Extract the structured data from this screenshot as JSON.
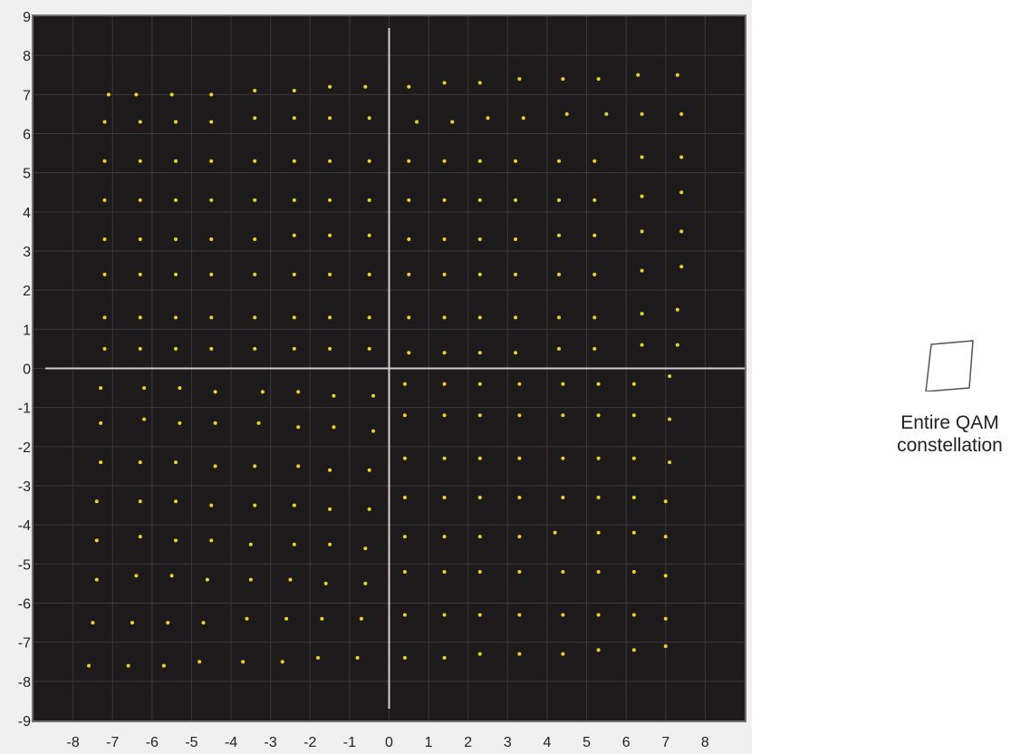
{
  "colors": {
    "plot_background": "#1c1a1a",
    "grid": "#3a3838",
    "axis_lines": "#cfcfcf",
    "points": "#f2d21a",
    "panel_frame": "#6e6e6e"
  },
  "legend": {
    "label": "Entire QAM\nconstellation",
    "icon": "parallelogram-outline-icon"
  },
  "chart_data": {
    "type": "scatter",
    "title": "",
    "xlabel": "",
    "ylabel": "",
    "xlim": [
      -9,
      9
    ],
    "ylim": [
      -9,
      9
    ],
    "x_ticks": [
      -8,
      -7,
      -6,
      -5,
      -4,
      -3,
      -2,
      -1,
      0,
      1,
      2,
      3,
      4,
      5,
      6,
      7,
      8
    ],
    "y_ticks": [
      9,
      8,
      7,
      6,
      5,
      4,
      3,
      2,
      1,
      0,
      -1,
      -2,
      -3,
      -4,
      -5,
      -6,
      -7,
      -8,
      -9
    ],
    "grid": true,
    "axis_lines_at_origin": true,
    "legend": "right",
    "series": [
      {
        "name": "Entire QAM constellation",
        "points": [
          [
            -7.1,
            7.0
          ],
          [
            -6.4,
            7.0
          ],
          [
            -5.5,
            7.0
          ],
          [
            -4.5,
            7.0
          ],
          [
            -3.4,
            7.1
          ],
          [
            -2.4,
            7.1
          ],
          [
            -1.5,
            7.2
          ],
          [
            -0.6,
            7.2
          ],
          [
            0.5,
            7.2
          ],
          [
            1.4,
            7.3
          ],
          [
            2.3,
            7.3
          ],
          [
            3.3,
            7.4
          ],
          [
            4.4,
            7.4
          ],
          [
            5.3,
            7.4
          ],
          [
            6.3,
            7.5
          ],
          [
            7.3,
            7.5
          ],
          [
            -7.2,
            6.3
          ],
          [
            -6.3,
            6.3
          ],
          [
            -5.4,
            6.3
          ],
          [
            -4.5,
            6.3
          ],
          [
            -3.4,
            6.4
          ],
          [
            -2.4,
            6.4
          ],
          [
            -1.5,
            6.4
          ],
          [
            -0.5,
            6.4
          ],
          [
            0.7,
            6.3
          ],
          [
            1.6,
            6.3
          ],
          [
            2.5,
            6.4
          ],
          [
            3.4,
            6.4
          ],
          [
            4.5,
            6.5
          ],
          [
            5.5,
            6.5
          ],
          [
            6.4,
            6.5
          ],
          [
            7.4,
            6.5
          ],
          [
            -7.2,
            5.3
          ],
          [
            -6.3,
            5.3
          ],
          [
            -5.4,
            5.3
          ],
          [
            -4.5,
            5.3
          ],
          [
            -3.4,
            5.3
          ],
          [
            -2.4,
            5.3
          ],
          [
            -1.5,
            5.3
          ],
          [
            -0.5,
            5.3
          ],
          [
            0.5,
            5.3
          ],
          [
            1.4,
            5.3
          ],
          [
            2.3,
            5.3
          ],
          [
            3.2,
            5.3
          ],
          [
            4.3,
            5.3
          ],
          [
            5.2,
            5.3
          ],
          [
            6.4,
            5.4
          ],
          [
            7.4,
            5.4
          ],
          [
            -7.2,
            4.3
          ],
          [
            -6.3,
            4.3
          ],
          [
            -5.4,
            4.3
          ],
          [
            -4.5,
            4.3
          ],
          [
            -3.4,
            4.3
          ],
          [
            -2.4,
            4.3
          ],
          [
            -1.5,
            4.3
          ],
          [
            -0.5,
            4.3
          ],
          [
            0.5,
            4.3
          ],
          [
            1.4,
            4.3
          ],
          [
            2.3,
            4.3
          ],
          [
            3.2,
            4.3
          ],
          [
            4.3,
            4.3
          ],
          [
            5.2,
            4.3
          ],
          [
            6.4,
            4.4
          ],
          [
            7.4,
            4.5
          ],
          [
            -7.2,
            3.3
          ],
          [
            -6.3,
            3.3
          ],
          [
            -5.4,
            3.3
          ],
          [
            -4.5,
            3.3
          ],
          [
            -3.4,
            3.3
          ],
          [
            -2.4,
            3.4
          ],
          [
            -1.5,
            3.4
          ],
          [
            -0.5,
            3.4
          ],
          [
            0.5,
            3.3
          ],
          [
            1.4,
            3.3
          ],
          [
            2.3,
            3.3
          ],
          [
            3.2,
            3.3
          ],
          [
            4.3,
            3.4
          ],
          [
            5.2,
            3.4
          ],
          [
            6.4,
            3.5
          ],
          [
            7.4,
            3.5
          ],
          [
            -7.2,
            2.4
          ],
          [
            -6.3,
            2.4
          ],
          [
            -5.4,
            2.4
          ],
          [
            -4.5,
            2.4
          ],
          [
            -3.4,
            2.4
          ],
          [
            -2.4,
            2.4
          ],
          [
            -1.5,
            2.4
          ],
          [
            -0.5,
            2.4
          ],
          [
            0.5,
            2.4
          ],
          [
            1.4,
            2.4
          ],
          [
            2.3,
            2.4
          ],
          [
            3.2,
            2.4
          ],
          [
            4.3,
            2.4
          ],
          [
            5.2,
            2.4
          ],
          [
            6.4,
            2.5
          ],
          [
            7.4,
            2.6
          ],
          [
            -7.2,
            1.3
          ],
          [
            -6.3,
            1.3
          ],
          [
            -5.4,
            1.3
          ],
          [
            -4.5,
            1.3
          ],
          [
            -3.4,
            1.3
          ],
          [
            -2.4,
            1.3
          ],
          [
            -1.5,
            1.3
          ],
          [
            -0.5,
            1.3
          ],
          [
            0.5,
            1.3
          ],
          [
            1.4,
            1.3
          ],
          [
            2.3,
            1.3
          ],
          [
            3.2,
            1.3
          ],
          [
            4.3,
            1.3
          ],
          [
            5.2,
            1.3
          ],
          [
            6.4,
            1.4
          ],
          [
            7.3,
            1.5
          ],
          [
            -7.2,
            0.5
          ],
          [
            -6.3,
            0.5
          ],
          [
            -5.4,
            0.5
          ],
          [
            -4.5,
            0.5
          ],
          [
            -3.4,
            0.5
          ],
          [
            -2.4,
            0.5
          ],
          [
            -1.5,
            0.5
          ],
          [
            -0.5,
            0.5
          ],
          [
            0.5,
            0.4
          ],
          [
            1.4,
            0.4
          ],
          [
            2.3,
            0.4
          ],
          [
            3.2,
            0.4
          ],
          [
            4.3,
            0.5
          ],
          [
            5.2,
            0.5
          ],
          [
            6.4,
            0.6
          ],
          [
            7.3,
            0.6
          ],
          [
            -7.3,
            -0.5
          ],
          [
            -6.2,
            -0.5
          ],
          [
            -5.3,
            -0.5
          ],
          [
            -4.4,
            -0.6
          ],
          [
            -3.2,
            -0.6
          ],
          [
            -2.3,
            -0.6
          ],
          [
            -1.4,
            -0.7
          ],
          [
            -0.4,
            -0.7
          ],
          [
            0.4,
            -0.4
          ],
          [
            1.4,
            -0.4
          ],
          [
            2.3,
            -0.4
          ],
          [
            3.3,
            -0.4
          ],
          [
            4.4,
            -0.4
          ],
          [
            5.3,
            -0.4
          ],
          [
            6.2,
            -0.4
          ],
          [
            7.1,
            -0.2
          ],
          [
            -7.3,
            -1.4
          ],
          [
            -6.2,
            -1.3
          ],
          [
            -5.3,
            -1.4
          ],
          [
            -4.4,
            -1.4
          ],
          [
            -3.3,
            -1.4
          ],
          [
            -2.3,
            -1.5
          ],
          [
            -1.4,
            -1.5
          ],
          [
            -0.4,
            -1.6
          ],
          [
            0.4,
            -1.2
          ],
          [
            1.4,
            -1.2
          ],
          [
            2.3,
            -1.2
          ],
          [
            3.3,
            -1.2
          ],
          [
            4.4,
            -1.2
          ],
          [
            5.3,
            -1.2
          ],
          [
            6.2,
            -1.2
          ],
          [
            7.1,
            -1.3
          ],
          [
            -7.3,
            -2.4
          ],
          [
            -6.3,
            -2.4
          ],
          [
            -5.4,
            -2.4
          ],
          [
            -4.4,
            -2.5
          ],
          [
            -3.4,
            -2.5
          ],
          [
            -2.3,
            -2.5
          ],
          [
            -1.5,
            -2.6
          ],
          [
            -0.5,
            -2.6
          ],
          [
            0.4,
            -2.3
          ],
          [
            1.4,
            -2.3
          ],
          [
            2.3,
            -2.3
          ],
          [
            3.3,
            -2.3
          ],
          [
            4.4,
            -2.3
          ],
          [
            5.3,
            -2.3
          ],
          [
            6.2,
            -2.3
          ],
          [
            7.1,
            -2.4
          ],
          [
            -7.4,
            -3.4
          ],
          [
            -6.3,
            -3.4
          ],
          [
            -5.4,
            -3.4
          ],
          [
            -4.5,
            -3.5
          ],
          [
            -3.4,
            -3.5
          ],
          [
            -2.4,
            -3.5
          ],
          [
            -1.5,
            -3.6
          ],
          [
            -0.5,
            -3.6
          ],
          [
            0.4,
            -3.3
          ],
          [
            1.4,
            -3.3
          ],
          [
            2.3,
            -3.3
          ],
          [
            3.3,
            -3.3
          ],
          [
            4.4,
            -3.3
          ],
          [
            5.3,
            -3.3
          ],
          [
            6.2,
            -3.3
          ],
          [
            7.0,
            -3.4
          ],
          [
            -7.4,
            -4.4
          ],
          [
            -6.3,
            -4.3
          ],
          [
            -5.4,
            -4.4
          ],
          [
            -4.5,
            -4.4
          ],
          [
            -3.5,
            -4.5
          ],
          [
            -2.4,
            -4.5
          ],
          [
            -1.5,
            -4.5
          ],
          [
            -0.6,
            -4.6
          ],
          [
            0.4,
            -4.3
          ],
          [
            1.4,
            -4.3
          ],
          [
            2.3,
            -4.3
          ],
          [
            3.3,
            -4.3
          ],
          [
            4.2,
            -4.2
          ],
          [
            5.3,
            -4.2
          ],
          [
            6.2,
            -4.2
          ],
          [
            7.0,
            -4.3
          ],
          [
            -7.4,
            -5.4
          ],
          [
            -6.4,
            -5.3
          ],
          [
            -5.5,
            -5.3
          ],
          [
            -4.6,
            -5.4
          ],
          [
            -3.5,
            -5.4
          ],
          [
            -2.5,
            -5.4
          ],
          [
            -1.6,
            -5.5
          ],
          [
            -0.6,
            -5.5
          ],
          [
            0.4,
            -5.2
          ],
          [
            1.4,
            -5.2
          ],
          [
            2.3,
            -5.2
          ],
          [
            3.3,
            -5.2
          ],
          [
            4.4,
            -5.2
          ],
          [
            5.3,
            -5.2
          ],
          [
            6.2,
            -5.2
          ],
          [
            7.0,
            -5.3
          ],
          [
            -7.5,
            -6.5
          ],
          [
            -6.5,
            -6.5
          ],
          [
            -5.6,
            -6.5
          ],
          [
            -4.7,
            -6.5
          ],
          [
            -3.6,
            -6.4
          ],
          [
            -2.6,
            -6.4
          ],
          [
            -1.7,
            -6.4
          ],
          [
            -0.7,
            -6.4
          ],
          [
            0.4,
            -6.3
          ],
          [
            1.4,
            -6.3
          ],
          [
            2.3,
            -6.3
          ],
          [
            3.3,
            -6.3
          ],
          [
            4.4,
            -6.3
          ],
          [
            5.3,
            -6.3
          ],
          [
            6.2,
            -6.3
          ],
          [
            7.0,
            -6.4
          ],
          [
            -7.6,
            -7.6
          ],
          [
            -6.6,
            -7.6
          ],
          [
            -5.7,
            -7.6
          ],
          [
            -4.8,
            -7.5
          ],
          [
            -3.7,
            -7.5
          ],
          [
            -2.7,
            -7.5
          ],
          [
            -1.8,
            -7.4
          ],
          [
            -0.8,
            -7.4
          ],
          [
            0.4,
            -7.4
          ],
          [
            1.4,
            -7.4
          ],
          [
            2.3,
            -7.3
          ],
          [
            3.3,
            -7.3
          ],
          [
            4.4,
            -7.3
          ],
          [
            5.3,
            -7.2
          ],
          [
            6.2,
            -7.2
          ],
          [
            7.0,
            -7.1
          ]
        ]
      }
    ]
  }
}
